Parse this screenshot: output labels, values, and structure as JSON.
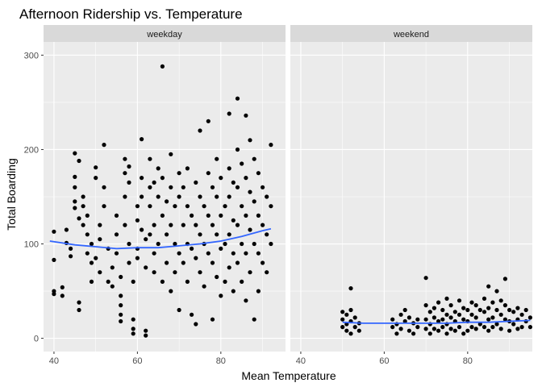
{
  "chart_data": {
    "type": "scatter",
    "title": "Afternoon Ridership vs. Temperature",
    "xlabel": "Mean Temperature",
    "ylabel": "Total Boarding",
    "xlim": [
      37.5,
      95.5
    ],
    "ylim": [
      -14,
      314
    ],
    "x_ticks": [
      40,
      60,
      80
    ],
    "y_ticks": [
      0,
      100,
      200,
      300
    ],
    "x_tick_labels": [
      "40",
      "60",
      "80"
    ],
    "y_tick_labels": [
      "0",
      "100",
      "200",
      "300"
    ],
    "grid": true,
    "legend": "none",
    "colors": {
      "panel_bg": "#ebebeb",
      "strip_bg": "#d9d9d9",
      "grid": "#ffffff",
      "point": "#000000",
      "smooth": "#3366ff"
    },
    "panels": [
      {
        "facet": "weekday",
        "points": [
          [
            40,
            113
          ],
          [
            40,
            83
          ],
          [
            40,
            50
          ],
          [
            40,
            47
          ],
          [
            42,
            54
          ],
          [
            42,
            45
          ],
          [
            43,
            115
          ],
          [
            43,
            101
          ],
          [
            44,
            95
          ],
          [
            44,
            87
          ],
          [
            45,
            196
          ],
          [
            45,
            171
          ],
          [
            45,
            160
          ],
          [
            45,
            145
          ],
          [
            45,
            138
          ],
          [
            46,
            127
          ],
          [
            46,
            188
          ],
          [
            46,
            38
          ],
          [
            46,
            30
          ],
          [
            47,
            150
          ],
          [
            47,
            140
          ],
          [
            47,
            120
          ],
          [
            48,
            110
          ],
          [
            48,
            130
          ],
          [
            48,
            90
          ],
          [
            49,
            100
          ],
          [
            49,
            80
          ],
          [
            49,
            60
          ],
          [
            50,
            181
          ],
          [
            50,
            170
          ],
          [
            50,
            85
          ],
          [
            51,
            70
          ],
          [
            51,
            120
          ],
          [
            51,
            105
          ],
          [
            52,
            205
          ],
          [
            52,
            160
          ],
          [
            52,
            140
          ],
          [
            53,
            95
          ],
          [
            53,
            60
          ],
          [
            54,
            55
          ],
          [
            54,
            75
          ],
          [
            55,
            110
          ],
          [
            55,
            130
          ],
          [
            55,
            90
          ],
          [
            56,
            65
          ],
          [
            56,
            45
          ],
          [
            56,
            35
          ],
          [
            56,
            25
          ],
          [
            56,
            18
          ],
          [
            57,
            190
          ],
          [
            57,
            175
          ],
          [
            57,
            150
          ],
          [
            57,
            120
          ],
          [
            58,
            182
          ],
          [
            58,
            165
          ],
          [
            58,
            100
          ],
          [
            58,
            80
          ],
          [
            59,
            60
          ],
          [
            59,
            20
          ],
          [
            59,
            10
          ],
          [
            59,
            5
          ],
          [
            60,
            140
          ],
          [
            60,
            125
          ],
          [
            60,
            95
          ],
          [
            60,
            85
          ],
          [
            61,
            211
          ],
          [
            61,
            170
          ],
          [
            61,
            150
          ],
          [
            61,
            115
          ],
          [
            62,
            105
          ],
          [
            62,
            75
          ],
          [
            62,
            8
          ],
          [
            62,
            3
          ],
          [
            63,
            190
          ],
          [
            63,
            160
          ],
          [
            63,
            140
          ],
          [
            63,
            110
          ],
          [
            64,
            165
          ],
          [
            64,
            120
          ],
          [
            64,
            90
          ],
          [
            64,
            70
          ],
          [
            65,
            180
          ],
          [
            65,
            150
          ],
          [
            65,
            100
          ],
          [
            66,
            288
          ],
          [
            66,
            170
          ],
          [
            66,
            130
          ],
          [
            66,
            60
          ],
          [
            67,
            145
          ],
          [
            67,
            110
          ],
          [
            67,
            80
          ],
          [
            68,
            195
          ],
          [
            68,
            160
          ],
          [
            68,
            120
          ],
          [
            68,
            50
          ],
          [
            69,
            140
          ],
          [
            69,
            100
          ],
          [
            69,
            70
          ],
          [
            70,
            175
          ],
          [
            70,
            150
          ],
          [
            70,
            90
          ],
          [
            70,
            30
          ],
          [
            71,
            160
          ],
          [
            71,
            120
          ],
          [
            71,
            80
          ],
          [
            72,
            180
          ],
          [
            72,
            140
          ],
          [
            72,
            100
          ],
          [
            72,
            60
          ],
          [
            73,
            130
          ],
          [
            73,
            95
          ],
          [
            73,
            25
          ],
          [
            74,
            165
          ],
          [
            74,
            120
          ],
          [
            74,
            85
          ],
          [
            74,
            15
          ],
          [
            75,
            220
          ],
          [
            75,
            150
          ],
          [
            75,
            110
          ],
          [
            75,
            70
          ],
          [
            76,
            140
          ],
          [
            76,
            100
          ],
          [
            76,
            55
          ],
          [
            77,
            230
          ],
          [
            77,
            175
          ],
          [
            77,
            130
          ],
          [
            77,
            90
          ],
          [
            78,
            160
          ],
          [
            78,
            120
          ],
          [
            78,
            80
          ],
          [
            78,
            20
          ],
          [
            79,
            190
          ],
          [
            79,
            150
          ],
          [
            79,
            110
          ],
          [
            79,
            65
          ],
          [
            80,
            170
          ],
          [
            80,
            130
          ],
          [
            80,
            95
          ],
          [
            80,
            45
          ],
          [
            81,
            140
          ],
          [
            81,
            100
          ],
          [
            81,
            60
          ],
          [
            82,
            238
          ],
          [
            82,
            180
          ],
          [
            82,
            150
          ],
          [
            82,
            110
          ],
          [
            82,
            75
          ],
          [
            83,
            165
          ],
          [
            83,
            125
          ],
          [
            83,
            90
          ],
          [
            83,
            50
          ],
          [
            84,
            254
          ],
          [
            84,
            200
          ],
          [
            84,
            160
          ],
          [
            84,
            120
          ],
          [
            84,
            80
          ],
          [
            85,
            185
          ],
          [
            85,
            140
          ],
          [
            85,
            100
          ],
          [
            85,
            60
          ],
          [
            86,
            236
          ],
          [
            86,
            170
          ],
          [
            86,
            130
          ],
          [
            86,
            90
          ],
          [
            86,
            40
          ],
          [
            87,
            210
          ],
          [
            87,
            155
          ],
          [
            87,
            115
          ],
          [
            87,
            70
          ],
          [
            88,
            190
          ],
          [
            88,
            145
          ],
          [
            88,
            100
          ],
          [
            88,
            20
          ],
          [
            89,
            175
          ],
          [
            89,
            130
          ],
          [
            89,
            90
          ],
          [
            89,
            50
          ],
          [
            90,
            160
          ],
          [
            90,
            120
          ],
          [
            90,
            80
          ],
          [
            91,
            150
          ],
          [
            91,
            110
          ],
          [
            91,
            70
          ],
          [
            92,
            205
          ],
          [
            92,
            140
          ],
          [
            92,
            100
          ]
        ],
        "smooth": [
          [
            39,
            103
          ],
          [
            45,
            99
          ],
          [
            50,
            97
          ],
          [
            55,
            95
          ],
          [
            60,
            96
          ],
          [
            65,
            96
          ],
          [
            70,
            98
          ],
          [
            75,
            100
          ],
          [
            80,
            103
          ],
          [
            85,
            108
          ],
          [
            90,
            114
          ],
          [
            92,
            116
          ]
        ]
      },
      {
        "facet": "weekend",
        "points": [
          [
            50,
            28
          ],
          [
            50,
            20
          ],
          [
            50,
            12
          ],
          [
            51,
            25
          ],
          [
            51,
            15
          ],
          [
            51,
            8
          ],
          [
            52,
            53
          ],
          [
            52,
            30
          ],
          [
            52,
            18
          ],
          [
            52,
            5
          ],
          [
            53,
            22
          ],
          [
            53,
            12
          ],
          [
            54,
            16
          ],
          [
            54,
            8
          ],
          [
            62,
            20
          ],
          [
            62,
            12
          ],
          [
            63,
            15
          ],
          [
            63,
            5
          ],
          [
            64,
            25
          ],
          [
            64,
            10
          ],
          [
            65,
            30
          ],
          [
            65,
            18
          ],
          [
            66,
            22
          ],
          [
            66,
            8
          ],
          [
            67,
            16
          ],
          [
            67,
            5
          ],
          [
            68,
            20
          ],
          [
            68,
            12
          ],
          [
            70,
            64
          ],
          [
            70,
            35
          ],
          [
            70,
            20
          ],
          [
            70,
            10
          ],
          [
            71,
            28
          ],
          [
            71,
            15
          ],
          [
            71,
            5
          ],
          [
            72,
            32
          ],
          [
            72,
            22
          ],
          [
            72,
            10
          ],
          [
            73,
            38
          ],
          [
            73,
            18
          ],
          [
            73,
            8
          ],
          [
            74,
            30
          ],
          [
            74,
            20
          ],
          [
            74,
            12
          ],
          [
            75,
            42
          ],
          [
            75,
            25
          ],
          [
            75,
            15
          ],
          [
            75,
            5
          ],
          [
            76,
            35
          ],
          [
            76,
            22
          ],
          [
            76,
            10
          ],
          [
            77,
            28
          ],
          [
            77,
            18
          ],
          [
            77,
            8
          ],
          [
            78,
            40
          ],
          [
            78,
            25
          ],
          [
            78,
            12
          ],
          [
            79,
            32
          ],
          [
            79,
            20
          ],
          [
            79,
            5
          ],
          [
            80,
            30
          ],
          [
            80,
            18
          ],
          [
            80,
            8
          ],
          [
            81,
            38
          ],
          [
            81,
            25
          ],
          [
            81,
            12
          ],
          [
            82,
            35
          ],
          [
            82,
            22
          ],
          [
            82,
            10
          ],
          [
            83,
            30
          ],
          [
            83,
            15
          ],
          [
            84,
            42
          ],
          [
            84,
            28
          ],
          [
            84,
            12
          ],
          [
            85,
            55
          ],
          [
            85,
            32
          ],
          [
            85,
            20
          ],
          [
            85,
            8
          ],
          [
            86,
            38
          ],
          [
            86,
            22
          ],
          [
            86,
            12
          ],
          [
            87,
            50
          ],
          [
            87,
            30
          ],
          [
            87,
            15
          ],
          [
            88,
            40
          ],
          [
            88,
            25
          ],
          [
            88,
            10
          ],
          [
            89,
            63
          ],
          [
            89,
            35
          ],
          [
            89,
            20
          ],
          [
            90,
            30
          ],
          [
            90,
            18
          ],
          [
            90,
            8
          ],
          [
            91,
            28
          ],
          [
            91,
            15
          ],
          [
            92,
            32
          ],
          [
            92,
            20
          ],
          [
            92,
            10
          ],
          [
            93,
            25
          ],
          [
            93,
            12
          ],
          [
            94,
            30
          ],
          [
            94,
            18
          ],
          [
            95,
            22
          ],
          [
            95,
            12
          ]
        ],
        "smooth": [
          [
            50,
            17
          ],
          [
            55,
            16
          ],
          [
            60,
            16
          ],
          [
            65,
            16
          ],
          [
            70,
            16
          ],
          [
            75,
            16
          ],
          [
            80,
            17
          ],
          [
            85,
            17
          ],
          [
            90,
            18
          ],
          [
            95,
            19
          ]
        ]
      }
    ]
  }
}
